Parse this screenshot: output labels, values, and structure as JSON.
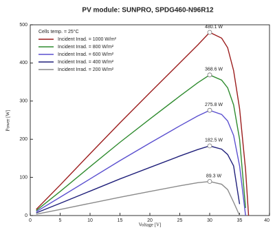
{
  "chart_data": {
    "type": "line",
    "title": "PV module:  SUNPRO,  SPDG460-N96R12",
    "x_label": "Voltage [V]",
    "y_label": "Power [W]",
    "legend_title": "Cells temp. = 25°C",
    "x": [
      1,
      5,
      10,
      15,
      20,
      25,
      28,
      30,
      32,
      33,
      34,
      35,
      36,
      36.5
    ],
    "series": [
      {
        "name": "Incident Irrad. = 1000 W/m²",
        "color": "#9b1c1c",
        "values": [
          16,
          80,
          162,
          243,
          322,
          400,
          447,
          480.1,
          465,
          440,
          380,
          280,
          120,
          0
        ],
        "value_labels": [
          null,
          null,
          null,
          null,
          null,
          null,
          null,
          "480.1 W",
          null,
          null,
          null,
          null,
          null,
          null
        ]
      },
      {
        "name": "Incident Irrad. = 800 W/m²",
        "color": "#2e8b2e",
        "values": [
          13,
          63,
          128,
          192,
          253,
          313,
          348,
          368.6,
          355,
          335,
          290,
          200,
          20,
          null
        ],
        "value_labels": [
          null,
          null,
          null,
          null,
          null,
          null,
          null,
          "368.6 W",
          null,
          null,
          null,
          null,
          null,
          null
        ]
      },
      {
        "name": "Incident Irrad. = 600 W/m²",
        "color": "#5a4fcf",
        "values": [
          10,
          48,
          96,
          144,
          190,
          235,
          261,
          275.8,
          265,
          248,
          210,
          130,
          0,
          null
        ],
        "value_labels": [
          null,
          null,
          null,
          null,
          null,
          null,
          null,
          "275.8 W",
          null,
          null,
          null,
          null,
          null,
          null
        ]
      },
      {
        "name": "Incident Irrad. = 400 W/m²",
        "color": "#1f1f7a",
        "values": [
          7,
          32,
          64,
          96,
          126,
          156,
          173,
          182.5,
          174,
          160,
          130,
          30,
          null,
          null
        ],
        "value_labels": [
          null,
          null,
          null,
          null,
          null,
          null,
          null,
          "182.5 W",
          null,
          null,
          null,
          null,
          null,
          null
        ]
      },
      {
        "name": "Incident Irrad. = 200 W/m²",
        "color": "#8a8a8a",
        "values": [
          3.5,
          16,
          32,
          48,
          63,
          78,
          86,
          89.3,
          82,
          68,
          35,
          0,
          null,
          null
        ],
        "value_labels": [
          null,
          null,
          null,
          null,
          null,
          null,
          null,
          "89.3 W",
          null,
          null,
          null,
          null,
          null,
          null
        ]
      }
    ],
    "xlim": [
      0,
      40
    ],
    "xticks": [
      0,
      5,
      10,
      15,
      20,
      25,
      30,
      35,
      40
    ],
    "ylim": [
      0,
      500
    ],
    "yticks": [
      0,
      100,
      200,
      300,
      400,
      500
    ],
    "grid": false
  }
}
